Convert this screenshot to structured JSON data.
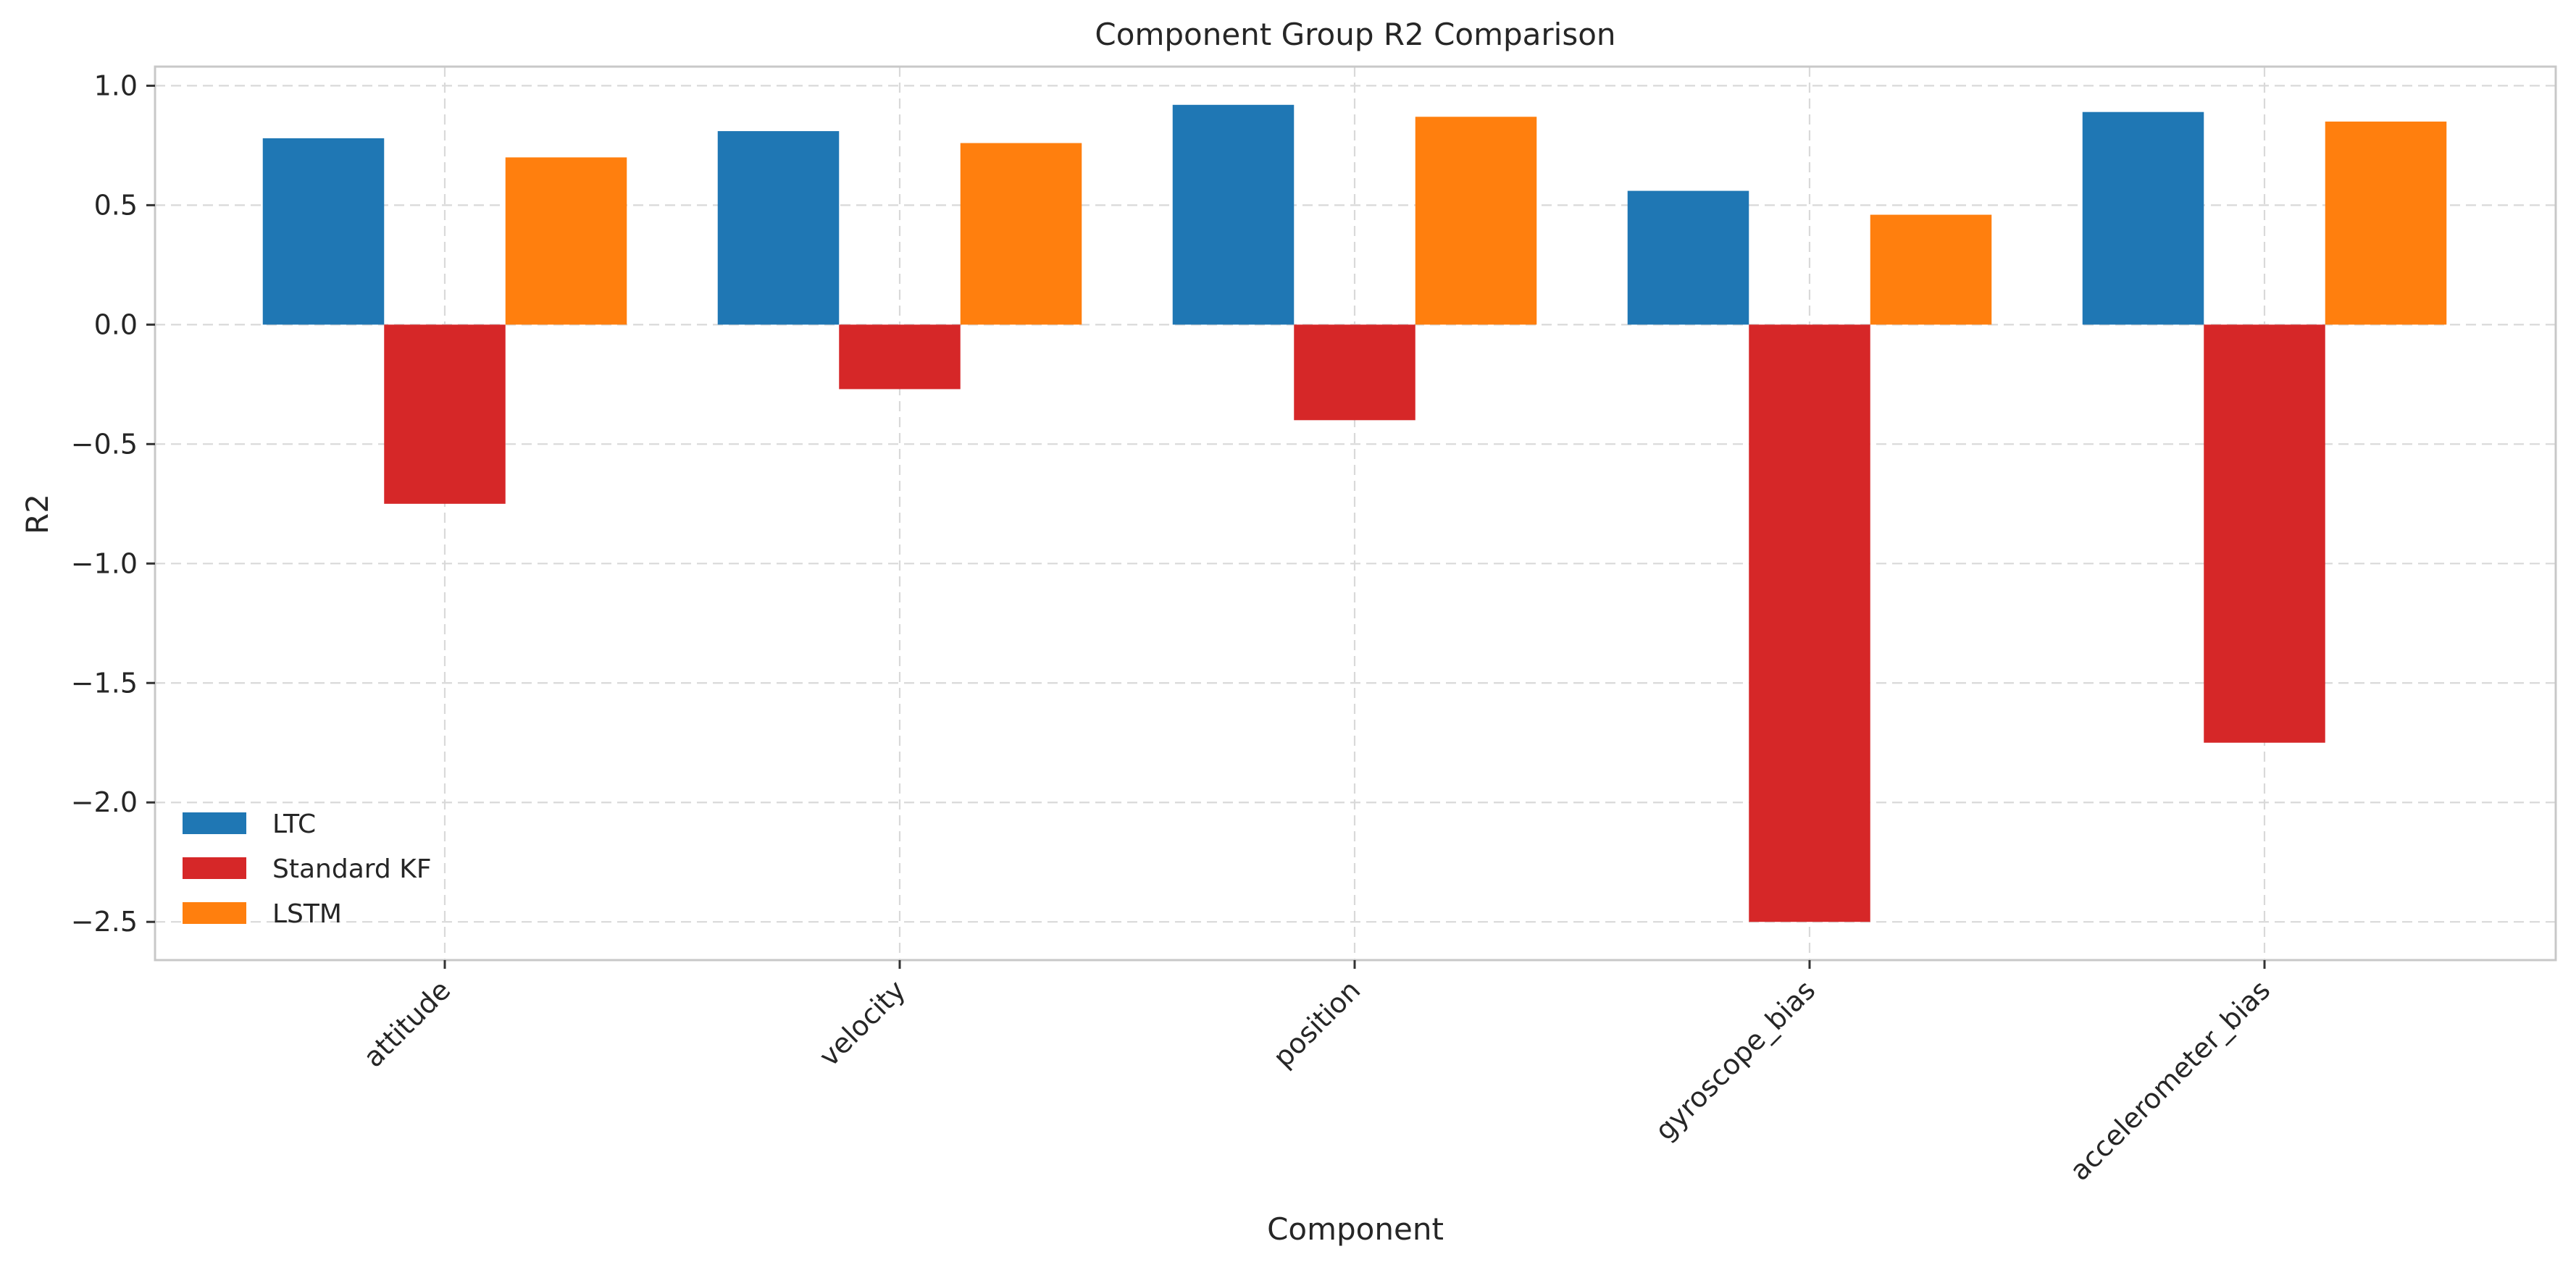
{
  "chart_data": {
    "type": "bar",
    "title": "Component Group R2 Comparison",
    "xlabel": "Component",
    "ylabel": "R2",
    "categories": [
      "attitude",
      "velocity",
      "position",
      "gyroscope_bias",
      "accelerometer_bias"
    ],
    "series": [
      {
        "name": "LTC",
        "color": "#1f77b4",
        "values": [
          0.78,
          0.81,
          0.92,
          0.56,
          0.89
        ]
      },
      {
        "name": "Standard KF",
        "color": "#d62728",
        "values": [
          -0.75,
          -0.27,
          -0.4,
          -2.5,
          -1.75
        ]
      },
      {
        "name": "LSTM",
        "color": "#ff7f0e",
        "values": [
          0.7,
          0.76,
          0.87,
          0.46,
          0.85
        ]
      }
    ],
    "ylim": [
      -2.66,
      1.08
    ],
    "yticks": [
      1.0,
      0.5,
      0.0,
      -0.5,
      -1.0,
      -1.5,
      -2.0,
      -2.5
    ],
    "ytick_labels": [
      "1.0",
      "0.5",
      "0.0",
      "−0.5",
      "−1.0",
      "−1.5",
      "−2.0",
      "−2.5"
    ],
    "grid": true,
    "legend_position": "lower-left"
  }
}
